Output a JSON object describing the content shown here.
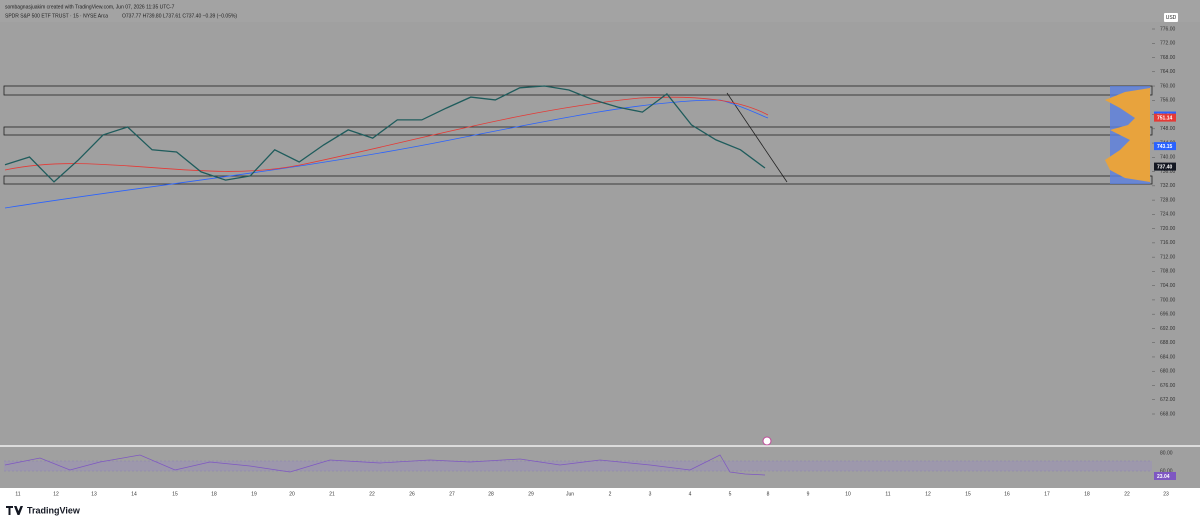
{
  "header": {
    "credit": "sombagnasjuakim created with TradingView.com, Jun 07, 2026 11:35 UTC-7",
    "symbol": "SPDR S&P 500 ETF TRUST · 15 · NYSE Arca",
    "ohlc": "O737.77 H739.80 L737.61 C737.40 −0.39 (−0.05%)",
    "currency": "USD"
  },
  "price_axis": {
    "ticks": [
      {
        "value": 776,
        "label": "776.00"
      },
      {
        "value": 772,
        "label": "772.00"
      },
      {
        "value": 768,
        "label": "768.00"
      },
      {
        "value": 764,
        "label": "764.00"
      },
      {
        "value": 760,
        "label": "760.00"
      },
      {
        "value": 756,
        "label": "756.00"
      },
      {
        "value": 752,
        "label": "752.00"
      },
      {
        "value": 748,
        "label": "748.00"
      },
      {
        "value": 744,
        "label": "744.00"
      },
      {
        "value": 740,
        "label": "740.00"
      },
      {
        "value": 736,
        "label": "736.00"
      },
      {
        "value": 732,
        "label": "732.00"
      },
      {
        "value": 728,
        "label": "728.00"
      },
      {
        "value": 724,
        "label": "724.00"
      },
      {
        "value": 720,
        "label": "720.00"
      },
      {
        "value": 716,
        "label": "716.00"
      },
      {
        "value": 712,
        "label": "712.00"
      },
      {
        "value": 708,
        "label": "708.00"
      },
      {
        "value": 704,
        "label": "704.00"
      },
      {
        "value": 700,
        "label": "700.00"
      },
      {
        "value": 696,
        "label": "696.00"
      },
      {
        "value": 692,
        "label": "692.00"
      },
      {
        "value": 688,
        "label": "688.00"
      },
      {
        "value": 684,
        "label": "684.00"
      },
      {
        "value": 680,
        "label": "680.00"
      },
      {
        "value": 676,
        "label": "676.00"
      },
      {
        "value": 672,
        "label": "672.00"
      },
      {
        "value": 668,
        "label": "668.00"
      }
    ],
    "tags": [
      {
        "value": 751.72,
        "label": "751.72",
        "color": "#2962ff"
      },
      {
        "value": 751.14,
        "label": "751.14",
        "color": "#e53935"
      },
      {
        "value": 743.15,
        "label": "743.15",
        "color": "#2962ff"
      },
      {
        "value": 737.4,
        "label": "737.40",
        "color": "#131722"
      }
    ]
  },
  "price_series": {
    "color": "#1f5c5c",
    "values": [
      737.9,
      740.1,
      733.1,
      739.3,
      746.3,
      748.5,
      742.1,
      741.5,
      735.9,
      733.6,
      734.8,
      742.1,
      738.7,
      743.5,
      747.7,
      745.4,
      750.5,
      750.5,
      753.8,
      756.9,
      756.1,
      759.5,
      760.0,
      758.9,
      756.1,
      754.1,
      752.7,
      757.8,
      749.1,
      744.9,
      742.1,
      737.0
    ]
  },
  "rsi": {
    "ticks": [
      "80.00",
      "60.00"
    ],
    "tag": "23.04"
  },
  "time_axis": [
    "11",
    "12",
    "13",
    "14",
    "15",
    "18",
    "19",
    "20",
    "21",
    "22",
    "26",
    "27",
    "28",
    "29",
    "Jun",
    "2",
    "3",
    "4",
    "5",
    "8",
    "9",
    "10",
    "11",
    "12",
    "15",
    "16",
    "17",
    "18",
    "22",
    "23"
  ],
  "footer": "TradingView"
}
